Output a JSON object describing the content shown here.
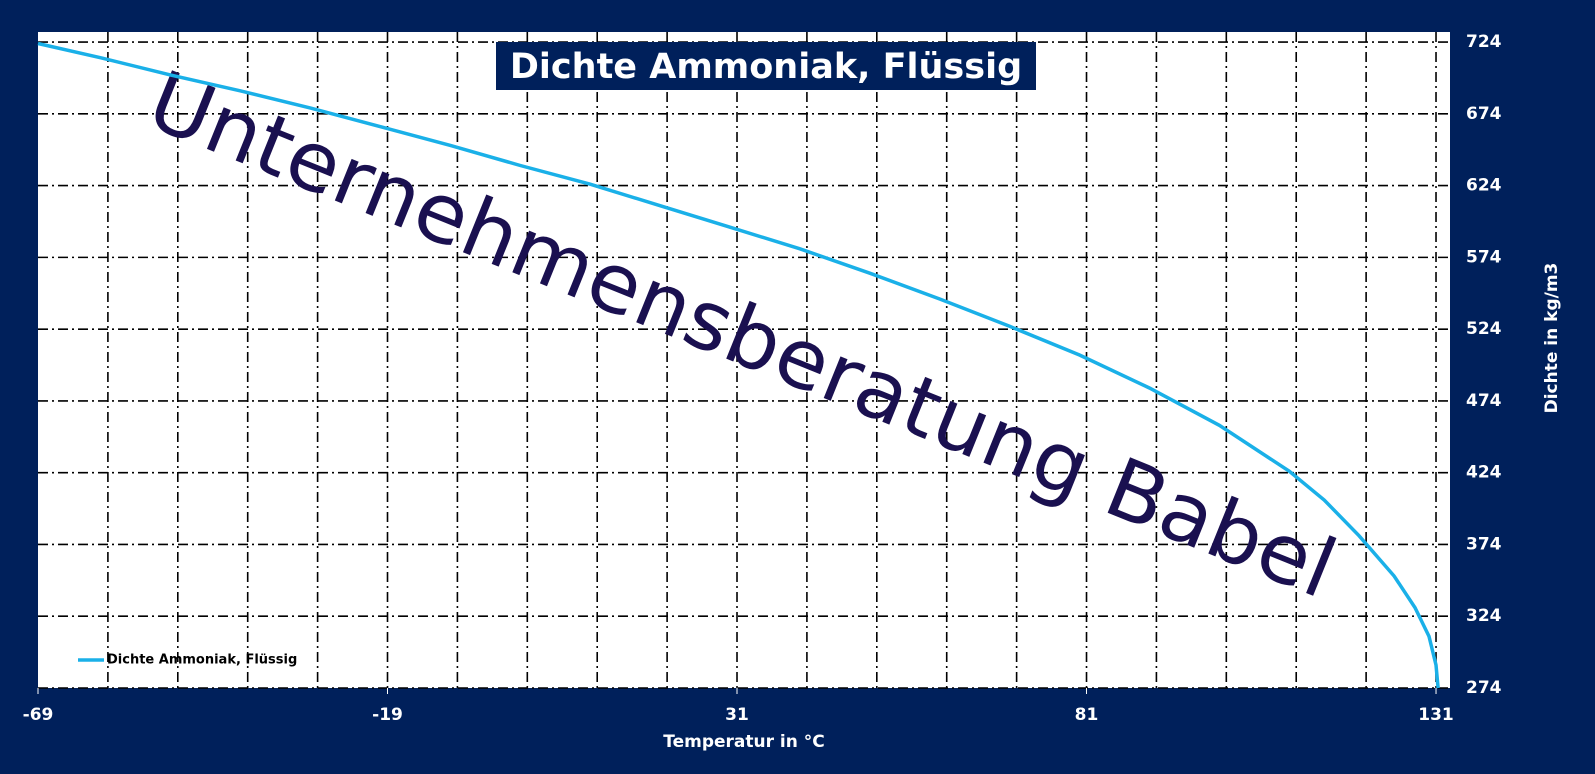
{
  "chart_data": {
    "type": "line",
    "title": "Dichte Ammoniak, Flüssig",
    "watermark": "Unternehmensberatung Babel",
    "x_label": "Temperatur in °C",
    "y_label": "Dichte in kg/m3",
    "x": [
      -69,
      -60,
      -50,
      -40,
      -30,
      -20,
      -10,
      0,
      10,
      20,
      30,
      40,
      50,
      60,
      70,
      80,
      90,
      100,
      110,
      115,
      120,
      125,
      128,
      130,
      131,
      131.3
    ],
    "series": [
      {
        "name": "Dichte Ammoniak, Flüssig",
        "color": "#1ab0e8",
        "values": [
          723,
          713,
          701,
          690,
          678,
          665,
          652,
          638,
          625,
          610,
          595,
          580,
          563,
          545,
          526,
          506,
          483,
          457,
          425,
          405,
          380,
          352,
          330,
          310,
          290,
          274
        ]
      }
    ],
    "xlim": [
      -69,
      133
    ],
    "ylim": [
      274,
      731
    ],
    "xticks": [
      -69,
      -19,
      31,
      81,
      131
    ],
    "xgrid": [
      -59,
      -49,
      -39,
      -29,
      -19,
      -9,
      1,
      11,
      21,
      31,
      41,
      51,
      61,
      71,
      81,
      91,
      101,
      111,
      121,
      131
    ],
    "yticks": [
      274,
      324,
      374,
      424,
      474,
      524,
      574,
      624,
      674,
      724
    ],
    "grid": true,
    "legend": "lower left"
  }
}
